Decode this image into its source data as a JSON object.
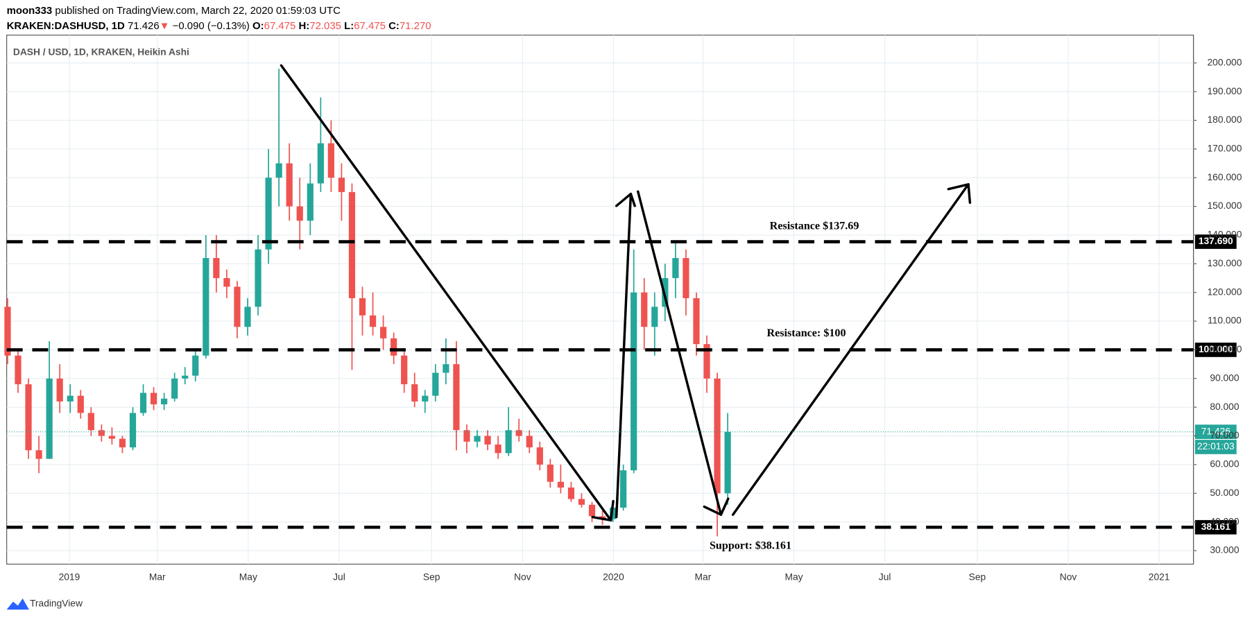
{
  "header": {
    "author": "moon333",
    "published": "published on TradingView.com, March 22, 2020 01:59:03 UTC",
    "symbol": "KRAKEN:DASHUSD, 1D",
    "price": "71.426",
    "change_arrow": "▼",
    "change": "−0.090 (−0.13%)",
    "open_label": "O:",
    "open": "67.475",
    "high_label": "H:",
    "high": "72.035",
    "low_label": "L:",
    "low": "67.475",
    "close_label": "C:",
    "close": "71.270"
  },
  "footer": {
    "brand": "TradingView"
  },
  "chart_data": {
    "type": "candlestick",
    "title": "DASH / USD, 1D, KRAKEN, Heikin Ashi",
    "up_color": "#26a69a",
    "down_color": "#ef5350",
    "grid": true,
    "x": [
      "2018-11-19",
      "2018-11-26",
      "2018-12-03",
      "2018-12-10",
      "2018-12-17",
      "2018-12-24",
      "2018-12-31",
      "2019-01-07",
      "2019-01-14",
      "2019-01-21",
      "2019-01-28",
      "2019-02-04",
      "2019-02-11",
      "2019-02-18",
      "2019-02-25",
      "2019-03-04",
      "2019-03-11",
      "2019-03-18",
      "2019-03-25",
      "2019-04-01",
      "2019-04-08",
      "2019-04-15",
      "2019-04-22",
      "2019-04-29",
      "2019-05-06",
      "2019-05-13",
      "2019-05-20",
      "2019-05-27",
      "2019-06-03",
      "2019-06-10",
      "2019-06-17",
      "2019-06-24",
      "2019-07-01",
      "2019-07-08",
      "2019-07-15",
      "2019-07-22",
      "2019-07-29",
      "2019-08-05",
      "2019-08-12",
      "2019-08-19",
      "2019-08-26",
      "2019-09-02",
      "2019-09-09",
      "2019-09-16",
      "2019-09-23",
      "2019-09-30",
      "2019-10-07",
      "2019-10-14",
      "2019-10-21",
      "2019-10-28",
      "2019-11-04",
      "2019-11-11",
      "2019-11-18",
      "2019-11-25",
      "2019-12-02",
      "2019-12-09",
      "2019-12-16",
      "2019-12-23",
      "2019-12-30",
      "2020-01-06",
      "2020-01-13",
      "2020-01-20",
      "2020-01-27",
      "2020-02-03",
      "2020-02-10",
      "2020-02-17",
      "2020-02-24",
      "2020-03-02",
      "2020-03-09",
      "2020-03-16"
    ],
    "open": [
      115,
      98,
      88,
      65,
      62,
      90,
      82,
      84,
      78,
      72,
      70,
      69,
      66,
      78,
      85,
      81,
      83,
      90,
      91,
      98,
      132,
      125,
      122,
      108,
      115,
      135,
      160,
      165,
      150,
      145,
      158,
      172,
      160,
      155,
      118,
      112,
      108,
      104,
      98,
      88,
      82,
      84,
      92,
      95,
      72,
      68,
      70,
      67,
      64,
      72,
      70,
      66,
      60,
      54,
      52,
      48,
      46,
      42,
      41,
      45,
      58,
      120,
      108,
      115,
      125,
      132,
      118,
      102,
      90,
      50
    ],
    "high": [
      118,
      100,
      90,
      70,
      103,
      95,
      88,
      86,
      80,
      74,
      73,
      70,
      80,
      88,
      87,
      85,
      92,
      94,
      100,
      140,
      140,
      128,
      124,
      118,
      140,
      170,
      198,
      172,
      160,
      165,
      188,
      180,
      165,
      158,
      122,
      120,
      112,
      106,
      100,
      92,
      86,
      95,
      104,
      103,
      74,
      72,
      72,
      70,
      80,
      76,
      72,
      68,
      62,
      60,
      54,
      50,
      47,
      44,
      46,
      60,
      135,
      125,
      120,
      130,
      138,
      135,
      120,
      105,
      92,
      78
    ],
    "low": [
      95,
      85,
      62,
      57,
      62,
      78,
      78,
      76,
      70,
      68,
      67,
      64,
      65,
      77,
      79,
      79,
      82,
      88,
      89,
      97,
      120,
      118,
      104,
      105,
      112,
      130,
      150,
      145,
      135,
      140,
      155,
      155,
      145,
      93,
      105,
      105,
      100,
      95,
      85,
      80,
      78,
      82,
      88,
      65,
      64,
      66,
      65,
      62,
      63,
      68,
      64,
      58,
      52,
      50,
      47,
      45,
      40,
      39,
      40,
      44,
      57,
      100,
      98,
      110,
      118,
      112,
      98,
      85,
      35,
      46
    ],
    "close": [
      98,
      88,
      65,
      62,
      90,
      82,
      84,
      78,
      72,
      70,
      69,
      66,
      78,
      85,
      81,
      83,
      90,
      91,
      98,
      132,
      125,
      122,
      108,
      115,
      135,
      160,
      165,
      150,
      145,
      158,
      172,
      160,
      155,
      118,
      112,
      108,
      104,
      98,
      88,
      82,
      84,
      92,
      95,
      72,
      68,
      70,
      67,
      64,
      72,
      70,
      66,
      60,
      54,
      52,
      48,
      46,
      42,
      41,
      45,
      58,
      120,
      108,
      115,
      125,
      132,
      118,
      102,
      90,
      50,
      71.426
    ],
    "xlim": [
      "2018-11-20",
      "2021-01-24"
    ],
    "xticks": [
      {
        "value": "2019-01-01",
        "label": "2019"
      },
      {
        "value": "2019-03-01",
        "label": "Mar"
      },
      {
        "value": "2019-05-01",
        "label": "May"
      },
      {
        "value": "2019-07-01",
        "label": "Jul"
      },
      {
        "value": "2019-09-01",
        "label": "Sep"
      },
      {
        "value": "2019-11-01",
        "label": "Nov"
      },
      {
        "value": "2020-01-01",
        "label": "2020"
      },
      {
        "value": "2020-03-01",
        "label": "Mar"
      },
      {
        "value": "2020-05-01",
        "label": "May"
      },
      {
        "value": "2020-07-01",
        "label": "Jul"
      },
      {
        "value": "2020-09-01",
        "label": "Sep"
      },
      {
        "value": "2020-11-01",
        "label": "Nov"
      },
      {
        "value": "2021-01-01",
        "label": "2021"
      }
    ],
    "ylim": [
      25.3,
      209.7
    ],
    "yticks": [
      {
        "value": 30,
        "label": "30.000"
      },
      {
        "value": 40,
        "label": "40.000"
      },
      {
        "value": 50,
        "label": "50.000"
      },
      {
        "value": 60,
        "label": "60.000"
      },
      {
        "value": 70,
        "label": "70.000"
      },
      {
        "value": 80,
        "label": "80.000"
      },
      {
        "value": 90,
        "label": "90.000"
      },
      {
        "value": 100,
        "label": "100.000"
      },
      {
        "value": 110,
        "label": "110.000"
      },
      {
        "value": 120,
        "label": "120.000"
      },
      {
        "value": 130,
        "label": "130.000"
      },
      {
        "value": 140,
        "label": "140.000"
      },
      {
        "value": 150,
        "label": "150.000"
      },
      {
        "value": 160,
        "label": "160.000"
      },
      {
        "value": 170,
        "label": "170.000"
      },
      {
        "value": 180,
        "label": "180.000"
      },
      {
        "value": 190,
        "label": "190.000"
      },
      {
        "value": 200,
        "label": "200.000"
      }
    ],
    "levels": [
      {
        "value": 137.69,
        "label": "137.690",
        "annotation": "Resistance $137.69"
      },
      {
        "value": 100,
        "label": "100.000",
        "annotation": "Resistance: $100"
      },
      {
        "value": 38.161,
        "label": "38.161",
        "annotation": "Support: $38.161"
      }
    ],
    "last_price": {
      "value": 71.426,
      "label": "71.426"
    },
    "countdown": "22:01:03"
  }
}
